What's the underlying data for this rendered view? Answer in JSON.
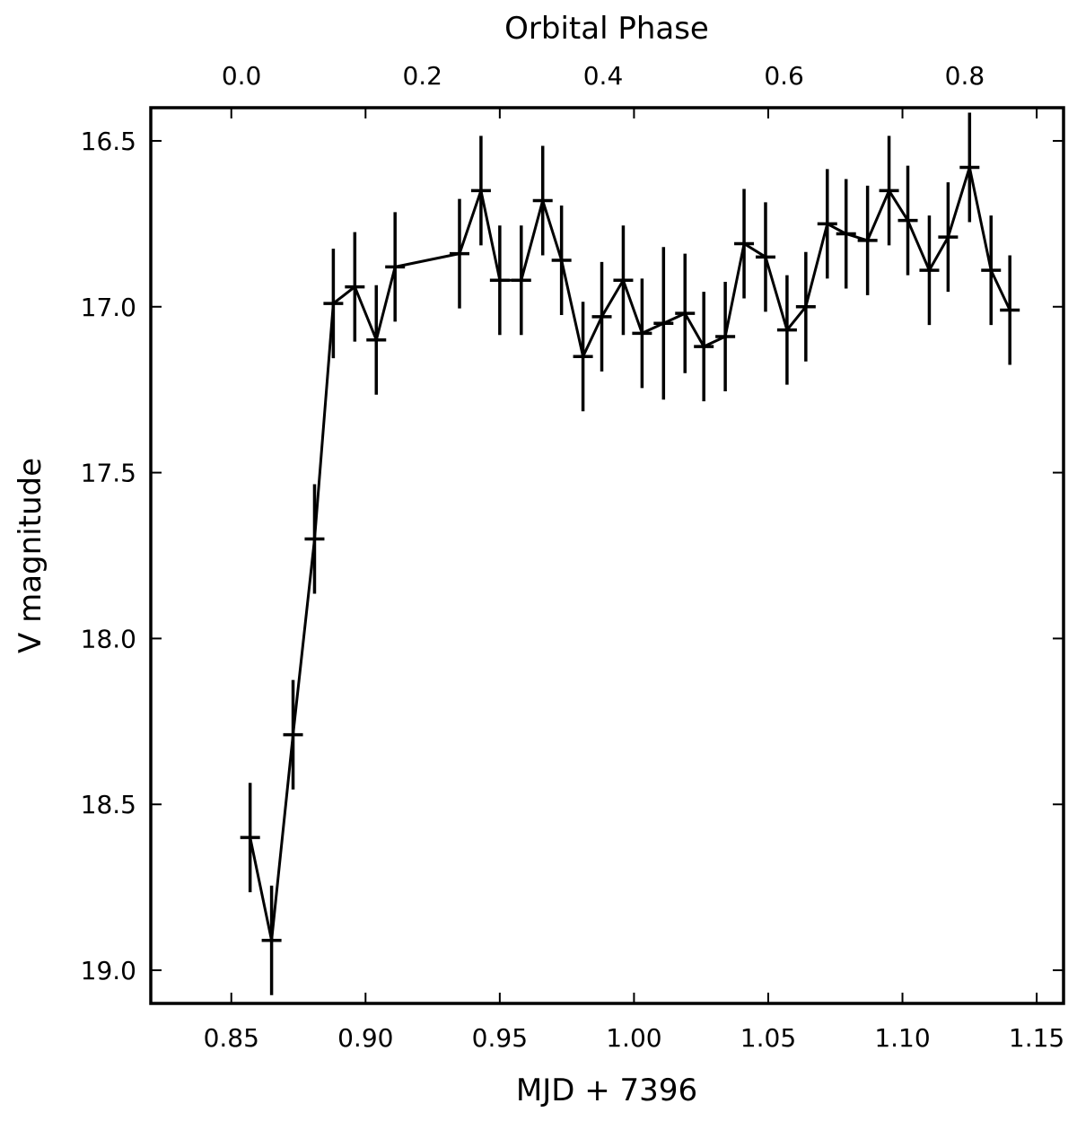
{
  "chart_data": {
    "type": "scatter",
    "title": "",
    "xlabel": "MJD + 7396",
    "ylabel": "V magnitude",
    "top_xlabel": "Orbital Phase",
    "xlim": [
      0.82,
      1.16
    ],
    "ylim": [
      19.1,
      16.4
    ],
    "y_inverted": true,
    "xticks": [
      0.85,
      0.9,
      0.95,
      1.0,
      1.05,
      1.1,
      1.15
    ],
    "xtick_labels": [
      "0.85",
      "0.90",
      "0.95",
      "1.00",
      "1.05",
      "1.10",
      "1.15"
    ],
    "yticks": [
      16.5,
      17.0,
      17.5,
      18.0,
      18.5,
      19.0
    ],
    "ytick_labels": [
      "16.5",
      "17.0",
      "17.5",
      "18.0",
      "18.5",
      "19.0"
    ],
    "top_ticks_x": [
      0.8538,
      0.9212,
      0.9885,
      1.0559,
      1.1232
    ],
    "top_tick_labels": [
      "0.0",
      "0.2",
      "0.4",
      "0.6",
      "0.8"
    ],
    "grid": false,
    "series": [
      {
        "marker": "+",
        "line": "solid",
        "color": "#000000",
        "x": [
          0.857,
          0.865,
          0.873,
          0.881,
          0.888,
          0.896,
          0.904,
          0.911,
          0.935,
          0.943,
          0.95,
          0.958,
          0.966,
          0.973,
          0.981,
          0.988,
          0.996,
          1.003,
          1.011,
          1.019,
          1.026,
          1.034,
          1.041,
          1.049,
          1.057,
          1.064,
          1.072,
          1.079,
          1.087,
          1.095,
          1.102,
          1.11,
          1.117,
          1.125,
          1.133,
          1.14
        ],
        "y": [
          18.6,
          18.91,
          18.29,
          17.7,
          16.99,
          16.94,
          17.1,
          16.88,
          16.84,
          16.65,
          16.92,
          16.92,
          16.68,
          16.86,
          17.15,
          17.03,
          16.92,
          17.08,
          17.05,
          17.02,
          17.12,
          17.09,
          16.81,
          16.85,
          17.07,
          17.0,
          16.75,
          16.78,
          16.8,
          16.65,
          16.74,
          16.89,
          16.79,
          16.58,
          16.89,
          17.01
        ],
        "yerr": [
          0.165,
          0.165,
          0.165,
          0.165,
          0.165,
          0.165,
          0.165,
          0.165,
          0.165,
          0.165,
          0.165,
          0.165,
          0.165,
          0.165,
          0.165,
          0.165,
          0.165,
          0.165,
          0.23,
          0.18,
          0.165,
          0.165,
          0.165,
          0.165,
          0.165,
          0.165,
          0.165,
          0.165,
          0.165,
          0.165,
          0.165,
          0.165,
          0.165,
          0.165,
          0.165,
          0.165
        ]
      }
    ]
  }
}
